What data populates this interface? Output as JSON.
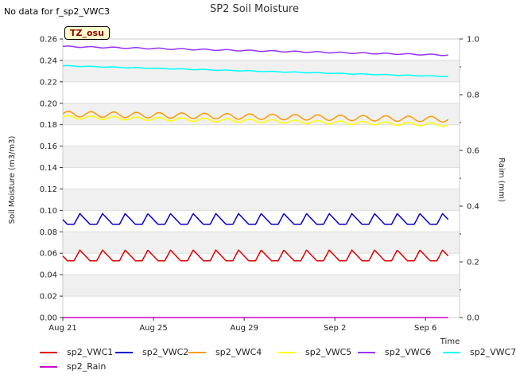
{
  "chart_data": {
    "type": "line",
    "title": "SP2 Soil Moisture",
    "note": "No data for f_sp2_VWC3",
    "site_badge": "TZ_osu",
    "xlabel": "Time",
    "ylabel_left": "Soil Moisture (m3/m3)",
    "ylabel_right": "Raim (mm)",
    "x_start": "Aug 21",
    "x_range_days": [
      0,
      17.5
    ],
    "x_ticks": [
      {
        "day": 0,
        "label": "Aug 21"
      },
      {
        "day": 4,
        "label": "Aug 25"
      },
      {
        "day": 8,
        "label": "Aug 29"
      },
      {
        "day": 12,
        "label": "Sep 2"
      },
      {
        "day": 16,
        "label": "Sep 6"
      }
    ],
    "ylim_left": [
      0,
      0.26
    ],
    "yticks_left": [
      "0.00",
      "0.02",
      "0.04",
      "0.06",
      "0.08",
      "0.10",
      "0.12",
      "0.14",
      "0.16",
      "0.18",
      "0.20",
      "0.22",
      "0.24",
      "0.26"
    ],
    "ylim_right": [
      0,
      1.0
    ],
    "yticks_right": [
      "0.0",
      "0.2",
      "0.4",
      "0.6",
      "0.8",
      "1.0"
    ],
    "grid": true,
    "legend_position": "bottom",
    "series": [
      {
        "name": "sp2_VWC1",
        "color": "#dd0000",
        "axis": "left",
        "start": 0.053,
        "end": 0.053,
        "amplitude": 0.01,
        "period_days": 1,
        "pattern": "diurnal-peak"
      },
      {
        "name": "sp2_VWC2",
        "color": "#0000cc",
        "axis": "left",
        "start": 0.087,
        "end": 0.087,
        "amplitude": 0.01,
        "period_days": 1,
        "pattern": "diurnal-peak"
      },
      {
        "name": "sp2_VWC4",
        "color": "#ff9900",
        "axis": "left",
        "start": 0.19,
        "end": 0.185,
        "amplitude": 0.005,
        "period_days": 1,
        "pattern": "wave"
      },
      {
        "name": "sp2_VWC5",
        "color": "#ffff00",
        "axis": "left",
        "start": 0.187,
        "end": 0.18,
        "amplitude": 0.003,
        "period_days": 1,
        "pattern": "wave"
      },
      {
        "name": "sp2_VWC6",
        "color": "#9933ff",
        "axis": "left",
        "start": 0.253,
        "end": 0.245,
        "amplitude": 0.001,
        "period_days": 1,
        "pattern": "wave"
      },
      {
        "name": "sp2_VWC7",
        "color": "#00ffff",
        "axis": "left",
        "start": 0.235,
        "end": 0.225,
        "amplitude": 0.0005,
        "period_days": 1,
        "pattern": "wave"
      },
      {
        "name": "sp2_Rain",
        "color": "#cc00cc",
        "axis": "right",
        "start": 0.0,
        "end": 0.0,
        "amplitude": 0,
        "period_days": 1,
        "pattern": "flat"
      }
    ]
  }
}
